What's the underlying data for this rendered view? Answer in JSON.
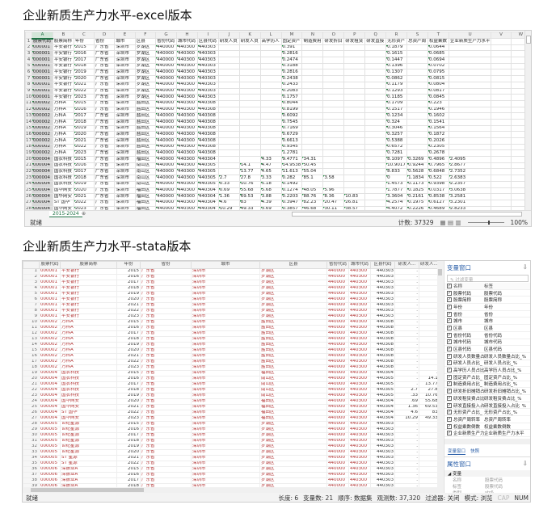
{
  "titles": {
    "excel": "企业新质生产力水平-excel版本",
    "stata": "企业新质生产力水平-stata版本"
  },
  "excel": {
    "columns": [
      "A",
      "B",
      "C",
      "D",
      "E",
      "F",
      "G",
      "H",
      "I",
      "J",
      "K",
      "L",
      "M",
      "N",
      "O",
      "P",
      "Q",
      "R",
      "S",
      "T",
      "U",
      "V",
      "W"
    ],
    "headers": [
      "股票代码",
      "股票简称",
      "年份",
      "省份",
      "城市",
      "区县",
      "省份代码",
      "城市代码",
      "区县代码",
      "研发人员",
      "研发人员",
      "高学历人",
      "固定资产",
      "制造费用",
      "研发折旧",
      "研发租赁",
      "研发直接",
      "无形资产",
      "总资产周",
      "权益乘数",
      "企业新质生产力水平",
      "",
      ""
    ],
    "rows": [
      [
        "000001",
        "平安银行",
        "2015",
        "广东省",
        "深圳市",
        "罗湖区",
        "440000",
        "440300",
        "440303",
        "",
        "",
        "",
        "0.391",
        "",
        "",
        "",
        "",
        "0.1879",
        "",
        "0.0644",
        ""
      ],
      [
        "000001",
        "平安银行",
        "2016",
        "广东省",
        "深圳市",
        "罗湖区",
        "440000",
        "440300",
        "440303",
        "",
        "",
        "",
        "0.2816",
        "",
        "",
        "",
        "",
        "0.1615",
        "",
        "0.0685",
        ""
      ],
      [
        "000001",
        "平安银行",
        "2017",
        "广东省",
        "深圳市",
        "罗湖区",
        "440000",
        "440300",
        "440303",
        "",
        "",
        "",
        "0.2474",
        "",
        "",
        "",
        "",
        "0.1447",
        "",
        "0.0694",
        ""
      ],
      [
        "000001",
        "平安银行",
        "2018",
        "广东省",
        "深圳市",
        "罗湖区",
        "440000",
        "440300",
        "440303",
        "",
        "",
        "",
        "0.3188",
        "",
        "",
        "",
        "",
        "0.1396",
        "",
        "0.0702",
        ""
      ],
      [
        "000001",
        "平安银行",
        "2019",
        "广东省",
        "深圳市",
        "罗湖区",
        "440000",
        "440300",
        "440303",
        "",
        "",
        "",
        "0.2816",
        "",
        "",
        "",
        "",
        "0.1307",
        "",
        "0.0795",
        ""
      ],
      [
        "000001",
        "平安银行",
        "2020",
        "广东省",
        "深圳市",
        "罗湖区",
        "440000",
        "440300",
        "440303",
        "",
        "",
        "",
        "0.2438",
        "",
        "",
        "",
        "",
        "0.0862",
        "",
        "0.0815",
        ""
      ],
      [
        "000001",
        "平安银行",
        "2021",
        "广东省",
        "深圳市",
        "罗湖区",
        "440000",
        "440300",
        "440303",
        "",
        "",
        "",
        "0.2433",
        "",
        "",
        "",
        "",
        "0.1179",
        "",
        "0.0804",
        ""
      ],
      [
        "000001",
        "平安银行",
        "2022",
        "广东省",
        "深圳市",
        "罗湖区",
        "440000",
        "440300",
        "440303",
        "",
        "",
        "",
        "0.2083",
        "",
        "",
        "",
        "",
        "0.1293",
        "",
        "0.0817",
        ""
      ],
      [
        "000001",
        "平安银行",
        "2023",
        "广东省",
        "深圳市",
        "罗湖区",
        "440000",
        "440300",
        "440303",
        "",
        "",
        "",
        "0.1757",
        "",
        "",
        "",
        "",
        "0.1185",
        "",
        "0.0845",
        ""
      ],
      [
        "000002",
        "万科A",
        "2015",
        "广东省",
        "深圳市",
        "盐田区",
        "440000",
        "440300",
        "440308",
        "",
        "",
        "",
        "0.8044",
        "",
        "",
        "",
        "",
        "0.1709",
        "",
        "0.223",
        ""
      ],
      [
        "000002",
        "万科A",
        "2016",
        "广东省",
        "深圳市",
        "盐田区",
        "440000",
        "440300",
        "440308",
        "",
        "",
        "",
        "0.8199",
        "",
        "",
        "",
        "",
        "0.1517",
        "",
        "0.1946",
        ""
      ],
      [
        "000002",
        "万科A",
        "2017",
        "广东省",
        "深圳市",
        "盐田区",
        "440000",
        "440300",
        "440308",
        "",
        "",
        "",
        "0.6092",
        "",
        "",
        "",
        "",
        "0.1234",
        "",
        "0.1602",
        ""
      ],
      [
        "000002",
        "万科A",
        "2018",
        "广东省",
        "深圳市",
        "盐田区",
        "440000",
        "440300",
        "440308",
        "",
        "",
        "",
        "0.7545",
        "",
        "",
        "",
        "",
        "0.324",
        "",
        "0.1541",
        ""
      ],
      [
        "000002",
        "万科A",
        "2019",
        "广东省",
        "深圳市",
        "盐田区",
        "440000",
        "440300",
        "440308",
        "",
        "",
        "",
        "0.7169",
        "",
        "",
        "",
        "",
        "0.3046",
        "",
        "0.1564",
        ""
      ],
      [
        "000002",
        "万科A",
        "2020",
        "广东省",
        "深圳市",
        "盐田区",
        "440000",
        "440300",
        "440308",
        "",
        "",
        "",
        "0.6729",
        "",
        "",
        "",
        "",
        "0.3257",
        "",
        "0.1872",
        ""
      ],
      [
        "000002",
        "万科A",
        "2021",
        "广东省",
        "深圳市",
        "盐田区",
        "440000",
        "440300",
        "440308",
        "",
        "",
        "",
        "0.6613",
        "",
        "",
        "",
        "",
        "0.5388",
        "",
        "0.2026",
        ""
      ],
      [
        "000002",
        "万科A",
        "2022",
        "广东省",
        "深圳市",
        "盐田区",
        "440000",
        "440300",
        "440308",
        "",
        "",
        "",
        "0.9345",
        "",
        "",
        "",
        "",
        "0.6572",
        "",
        "0.2305",
        ""
      ],
      [
        "000002",
        "万科A",
        "2023",
        "广东省",
        "深圳市",
        "盐田区",
        "440000",
        "440300",
        "440308",
        "",
        "",
        "",
        "1.2781",
        "",
        "",
        "",
        "",
        "0.7281",
        "",
        "0.2678",
        ""
      ],
      [
        "000004",
        "国农科技",
        "2015",
        "广东省",
        "深圳市",
        "福田区",
        "440000",
        "440300",
        "440304",
        "",
        "",
        "4.33",
        "9.4771",
        "34.31",
        "",
        "",
        "",
        "8.1097",
        "0.3269",
        "0.4896",
        "2.4095"
      ],
      [
        "000004",
        "国农科技",
        "2016",
        "广东省",
        "深圳市",
        "南山区",
        "440000",
        "440300",
        "440305",
        "",
        "14.1",
        "4.47",
        "14.9538",
        "50.45",
        "",
        "",
        "",
        "10.9017",
        "0.9244",
        "0.7965",
        "2.8677"
      ],
      [
        "000004",
        "国农科技",
        "2017",
        "广东省",
        "深圳市",
        "南山区",
        "440000",
        "440300",
        "440305",
        "",
        "13.77",
        "4.65",
        "11.613",
        "55.04",
        "",
        "",
        "",
        "8.833",
        "0.5628",
        "0.6848",
        "2.7352"
      ],
      [
        "000004",
        "国农科技",
        "2018",
        "广东省",
        "深圳市",
        "南山区",
        "440000",
        "440300",
        "440305",
        "2.7",
        "27.8",
        "3.33",
        "0.282",
        "85.1",
        "3.58",
        "",
        "",
        "0",
        "1.1834",
        "0.522",
        "2.6383"
      ],
      [
        "000004",
        "国农科技",
        "2019",
        "广东省",
        "深圳市",
        "南山区",
        "440000",
        "440300",
        "440305",
        "0.33",
        "10.76",
        "5.18",
        "0.1492",
        "",
        "",
        "",
        "",
        "1.4573",
        "0.1173",
        "0.9398",
        "2.2357"
      ],
      [
        "000004",
        "国华网安",
        "2020",
        "广东省",
        "深圳市",
        "福田区",
        "440000",
        "440300",
        "440304",
        "0.69",
        "55.68",
        "5.68",
        "0.1274",
        "48.05",
        "5.96",
        "",
        "",
        "1.7877",
        "0.1825",
        "0.0317",
        "3.0638"
      ],
      [
        "000004",
        "国华网安",
        "2021",
        "广东省",
        "深圳市",
        "福田区",
        "440000",
        "440300",
        "440304",
        "1.36",
        "69.53",
        "3.88",
        "0.2203",
        "88.76",
        "8.36",
        "10.83",
        "",
        "3.3604",
        "0.2161",
        "0.8538",
        "3.2581"
      ],
      [
        "000004",
        "ST 国华",
        "2022",
        "广东省",
        "深圳市",
        "福田区",
        "440000",
        "440300",
        "440304",
        "4.6",
        "83",
        "4.39",
        "0.3947",
        "82.23",
        "20.47",
        "26.81",
        "",
        "4.2574",
        "0.1975",
        "0.6127",
        "3.2301"
      ],
      [
        "000004",
        "国华网安",
        "2023",
        "广东省",
        "深圳市",
        "福田区",
        "440000",
        "440300",
        "440304",
        "10.29",
        "49.33",
        "3.69",
        "0.3857",
        "46.68",
        "30.11",
        "38.57",
        "",
        "4.4072",
        "0.2226",
        "0.4689",
        "2.8233"
      ],
      [
        "000005",
        "世纪星源",
        "2015",
        "广东省",
        "深圳市",
        "罗湖区",
        "440000",
        "440300",
        "440303",
        "",
        "",
        "",
        "1.4879",
        "",
        "",
        "",
        "",
        "1.7164",
        "",
        "0.853",
        ""
      ]
    ],
    "sheet_tab": "2015-2024",
    "status": {
      "ready": "就绪",
      "count": "计数: 37329",
      "zoom": "100%"
    }
  },
  "stata": {
    "headers": [
      "股票代码",
      "股票简称",
      "年份",
      "省份",
      "城市",
      "区县",
      "省份代码",
      "城市代码",
      "区县代码",
      "研发人...",
      "研发人..."
    ],
    "rows": [
      [
        "000001",
        "平安银行",
        "2015",
        "广东省",
        "深圳市",
        "罗湖区",
        "440000",
        "440300",
        "440303",
        ".",
        ""
      ],
      [
        "000001",
        "平安银行",
        "2016",
        "广东省",
        "深圳市",
        "罗湖区",
        "440000",
        "440300",
        "440303",
        ".",
        ""
      ],
      [
        "000001",
        "平安银行",
        "2017",
        "广东省",
        "深圳市",
        "罗湖区",
        "440000",
        "440300",
        "440303",
        ".",
        ""
      ],
      [
        "000001",
        "平安银行",
        "2018",
        "广东省",
        "深圳市",
        "罗湖区",
        "440000",
        "440300",
        "440303",
        ".",
        ""
      ],
      [
        "000001",
        "平安银行",
        "2019",
        "广东省",
        "深圳市",
        "罗湖区",
        "440000",
        "440300",
        "440303",
        ".",
        ""
      ],
      [
        "000001",
        "平安银行",
        "2020",
        "广东省",
        "深圳市",
        "罗湖区",
        "440000",
        "440300",
        "440303",
        ".",
        ""
      ],
      [
        "000001",
        "平安银行",
        "2021",
        "广东省",
        "深圳市",
        "罗湖区",
        "440000",
        "440300",
        "440303",
        ".",
        ""
      ],
      [
        "000001",
        "平安银行",
        "2022",
        "广东省",
        "深圳市",
        "罗湖区",
        "440000",
        "440300",
        "440303",
        ".",
        ""
      ],
      [
        "000001",
        "平安银行",
        "2023",
        "广东省",
        "深圳市",
        "罗湖区",
        "440000",
        "440300",
        "440303",
        ".",
        ""
      ],
      [
        "000002",
        "万科A",
        "2015",
        "广东省",
        "深圳市",
        "盐田区",
        "440000",
        "440300",
        "440308",
        ".",
        ""
      ],
      [
        "000002",
        "万科A",
        "2016",
        "广东省",
        "深圳市",
        "盐田区",
        "440000",
        "440300",
        "440308",
        ".",
        ""
      ],
      [
        "000002",
        "万科A",
        "2017",
        "广东省",
        "深圳市",
        "盐田区",
        "440000",
        "440300",
        "440308",
        ".",
        ""
      ],
      [
        "000002",
        "万科A",
        "2018",
        "广东省",
        "深圳市",
        "盐田区",
        "440000",
        "440300",
        "440308",
        ".",
        ""
      ],
      [
        "000002",
        "万科A",
        "2019",
        "广东省",
        "深圳市",
        "盐田区",
        "440000",
        "440300",
        "440308",
        ".",
        ""
      ],
      [
        "000002",
        "万科A",
        "2020",
        "广东省",
        "深圳市",
        "盐田区",
        "440000",
        "440300",
        "440308",
        ".",
        ""
      ],
      [
        "000002",
        "万科A",
        "2021",
        "广东省",
        "深圳市",
        "盐田区",
        "440000",
        "440300",
        "440308",
        ".",
        ""
      ],
      [
        "000002",
        "万科A",
        "2022",
        "广东省",
        "深圳市",
        "盐田区",
        "440000",
        "440300",
        "440308",
        ".",
        ""
      ],
      [
        "000002",
        "万科A",
        "2023",
        "广东省",
        "深圳市",
        "盐田区",
        "440000",
        "440300",
        "440308",
        ".",
        ""
      ],
      [
        "000004",
        "国农科技",
        "2015",
        "广东省",
        "深圳市",
        "福田区",
        "440000",
        "440300",
        "440304",
        ".",
        "."
      ],
      [
        "000004",
        "国农科技",
        "2016",
        "广东省",
        "深圳市",
        "南山区",
        "440000",
        "440300",
        "440305",
        ".",
        "14.1"
      ],
      [
        "000004",
        "国农科技",
        "2017",
        "广东省",
        "深圳市",
        "南山区",
        "440000",
        "440300",
        "440305",
        ".",
        "13.77"
      ],
      [
        "000004",
        "国农科技",
        "2018",
        "广东省",
        "深圳市",
        "南山区",
        "440000",
        "440300",
        "440305",
        "2.7",
        "27.8"
      ],
      [
        "000004",
        "国农科技",
        "2019",
        "广东省",
        "深圳市",
        "南山区",
        "440000",
        "440300",
        "440305",
        ".33",
        "10.76"
      ],
      [
        "000004",
        "国华网安",
        "2020",
        "广东省",
        "深圳市",
        "福田区",
        "440000",
        "440300",
        "440304",
        ".69",
        "55.68"
      ],
      [
        "000004",
        "国华网安",
        "2021",
        "广东省",
        "深圳市",
        "福田区",
        "440000",
        "440300",
        "440304",
        "1.36",
        "69.53"
      ],
      [
        "000004",
        "ST 国华",
        "2022",
        "广东省",
        "深圳市",
        "福田区",
        "440000",
        "440300",
        "440304",
        "4.6",
        "83"
      ],
      [
        "000004",
        "国华网安",
        "2023",
        "广东省",
        "深圳市",
        "福田区",
        "440000",
        "440300",
        "440304",
        "10.29",
        "49.33"
      ],
      [
        "000005",
        "世纪星源",
        "2015",
        "广东省",
        "深圳市",
        "罗湖区",
        "440000",
        "440300",
        "440303",
        ".",
        ""
      ],
      [
        "000005",
        "世纪星源",
        "2016",
        "广东省",
        "深圳市",
        "罗湖区",
        "440000",
        "440300",
        "440303",
        ".",
        ""
      ],
      [
        "000005",
        "世纪星源",
        "2017",
        "广东省",
        "深圳市",
        "罗湖区",
        "440000",
        "440300",
        "440303",
        ".",
        ""
      ],
      [
        "000005",
        "世纪星源",
        "2018",
        "广东省",
        "深圳市",
        "罗湖区",
        "440000",
        "440300",
        "440303",
        ".",
        ""
      ],
      [
        "000005",
        "世纪星源",
        "2019",
        "广东省",
        "深圳市",
        "罗湖区",
        "440000",
        "440300",
        "440303",
        ".",
        ""
      ],
      [
        "000005",
        "世纪星源",
        "2020",
        "广东省",
        "深圳市",
        "罗湖区",
        "440000",
        "440300",
        "440303",
        ".",
        ""
      ],
      [
        "000005",
        "ST 星源",
        "2021",
        "广东省",
        "深圳市",
        "罗湖区",
        "440000",
        "440300",
        "440303",
        ".",
        ""
      ],
      [
        "000005",
        "ST 星源",
        "2022",
        "广东省",
        "深圳市",
        "罗湖区",
        "440000",
        "440300",
        "440303",
        ".",
        ""
      ],
      [
        "000006",
        "深振业A",
        "2015",
        "广东省",
        "深圳市",
        "罗湖区",
        "440000",
        "440300",
        "440303",
        ".",
        ""
      ],
      [
        "000006",
        "深振业A",
        "2016",
        "广东省",
        "深圳市",
        "罗湖区",
        "440000",
        "440300",
        "440303",
        ".",
        ""
      ],
      [
        "000006",
        "深振业A",
        "2017",
        "广东省",
        "深圳市",
        "罗湖区",
        "440000",
        "440300",
        "440303",
        ".",
        ""
      ],
      [
        "000006",
        "深振业A",
        "2018",
        "广东省",
        "深圳市",
        "罗湖区",
        "440000",
        "440300",
        "440303",
        ".",
        ""
      ]
    ],
    "var_panel": {
      "title": "变量窗口",
      "filter_placeholder": "过滤变量",
      "col_name": "名称",
      "col_label": "标签",
      "vars": [
        [
          "股票代码",
          "股票代码"
        ],
        [
          "股票简称",
          "股票简称"
        ],
        [
          "年份",
          "年份"
        ],
        [
          "省份",
          "省份"
        ],
        [
          "城市",
          "城市"
        ],
        [
          "区县",
          "区县"
        ],
        [
          "省份代码",
          "省份代码"
        ],
        [
          "城市代码",
          "城市代码"
        ],
        [
          "区县代码",
          "区县代码"
        ],
        [
          "研发人员数量占...",
          "研发人员数量占比_%"
        ],
        [
          "研发人员占比_",
          "研发人员占比_%"
        ],
        [
          "高学历人员占比_",
          "高学历人员占比_%"
        ],
        [
          "固定资产占比_",
          "固定资产占比_%"
        ],
        [
          "制造费用占比_",
          "制造费用占比_%"
        ],
        [
          "研发折旧摊销占...",
          "研发折旧摊销占比_%"
        ],
        [
          "研发租赁费占比_",
          "研发租赁费占比_%"
        ],
        [
          "研发直接投入占...",
          "研发直接投入占比_%"
        ],
        [
          "无形资产占比_",
          "无形资产占比_%"
        ],
        [
          "总资产周转率",
          "总资产周转率"
        ],
        [
          "权益乘数倒数",
          "权益乘数倒数"
        ],
        [
          "企业新质生产力...",
          "企业新质生产力水平"
        ]
      ],
      "tabs": [
        "变量窗口",
        "快照"
      ]
    },
    "prop_panel": {
      "title": "属性窗口",
      "section": "变量",
      "props": [
        [
          "名称",
          "股票代码"
        ],
        [
          "标签",
          "股票代码"
        ],
        [
          "类型",
          "str6"
        ],
        [
          "格式",
          "%9s"
        ]
      ]
    },
    "status": {
      "ready": "就绪",
      "length": "长度: 6",
      "nvars": "变量数: 21",
      "order": "顺序: 数据集",
      "nobs": "观测数: 37,320",
      "filter": "过滤器: 关闭",
      "mode": "模式: 浏览",
      "cap": "CAP",
      "num": "NUM"
    }
  }
}
